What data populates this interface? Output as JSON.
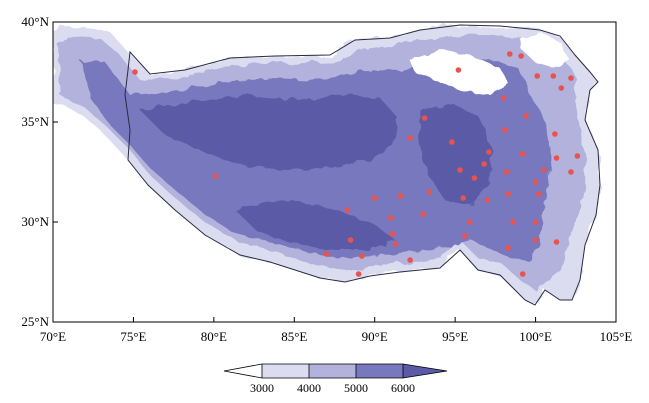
{
  "map": {
    "lon_range": [
      70,
      105
    ],
    "lat_range": [
      25,
      40
    ],
    "x_ticks": [
      "70°E",
      "75°E",
      "80°E",
      "85°E",
      "90°E",
      "95°E",
      "100°E",
      "105°E"
    ],
    "y_ticks": [
      "40°N",
      "35°N",
      "30°N",
      "25°N"
    ],
    "fill_colors": {
      "band_3000_4000": "#dcdcf0",
      "band_4000_5000": "#b2b2dc",
      "band_5000_6000": "#7878be",
      "band_6000_plus": "#5a5aa6",
      "outside": "#ffffff",
      "station": "#e8534e",
      "outline": "#2a2a40"
    },
    "stations": [
      [
        75.1,
        37.5
      ],
      [
        80.1,
        32.3
      ],
      [
        87.0,
        28.4
      ],
      [
        88.5,
        29.1
      ],
      [
        89.0,
        27.4
      ],
      [
        88.3,
        30.6
      ],
      [
        89.2,
        28.3
      ],
      [
        90.0,
        31.2
      ],
      [
        91.0,
        30.2
      ],
      [
        91.1,
        29.4
      ],
      [
        91.6,
        31.3
      ],
      [
        91.3,
        28.9
      ],
      [
        92.2,
        28.1
      ],
      [
        93.0,
        30.4
      ],
      [
        93.4,
        31.5
      ],
      [
        92.2,
        34.2
      ],
      [
        93.1,
        35.2
      ],
      [
        94.8,
        34.0
      ],
      [
        95.3,
        32.6
      ],
      [
        95.5,
        31.2
      ],
      [
        95.9,
        30.0
      ],
      [
        95.6,
        29.3
      ],
      [
        96.2,
        32.2
      ],
      [
        97.1,
        33.5
      ],
      [
        96.8,
        32.9
      ],
      [
        97.0,
        31.1
      ],
      [
        98.1,
        34.6
      ],
      [
        98.2,
        32.5
      ],
      [
        98.3,
        31.4
      ],
      [
        98.6,
        30.0
      ],
      [
        98.3,
        28.7
      ],
      [
        99.2,
        27.4
      ],
      [
        99.2,
        33.4
      ],
      [
        99.4,
        35.3
      ],
      [
        98.0,
        36.2
      ],
      [
        95.2,
        37.6
      ],
      [
        98.4,
        38.4
      ],
      [
        99.1,
        38.3
      ],
      [
        100.1,
        37.3
      ],
      [
        101.1,
        37.3
      ],
      [
        102.2,
        37.2
      ],
      [
        101.6,
        36.7
      ],
      [
        101.2,
        34.4
      ],
      [
        101.3,
        33.2
      ],
      [
        100.5,
        32.6
      ],
      [
        100.2,
        31.4
      ],
      [
        100.0,
        30.0
      ],
      [
        100.0,
        29.1
      ],
      [
        101.3,
        29.0
      ],
      [
        102.2,
        32.5
      ],
      [
        102.6,
        33.3
      ],
      [
        100.0,
        32.0
      ]
    ]
  },
  "colorbar": {
    "labels": [
      "3000",
      "4000",
      "5000",
      "6000"
    ]
  }
}
